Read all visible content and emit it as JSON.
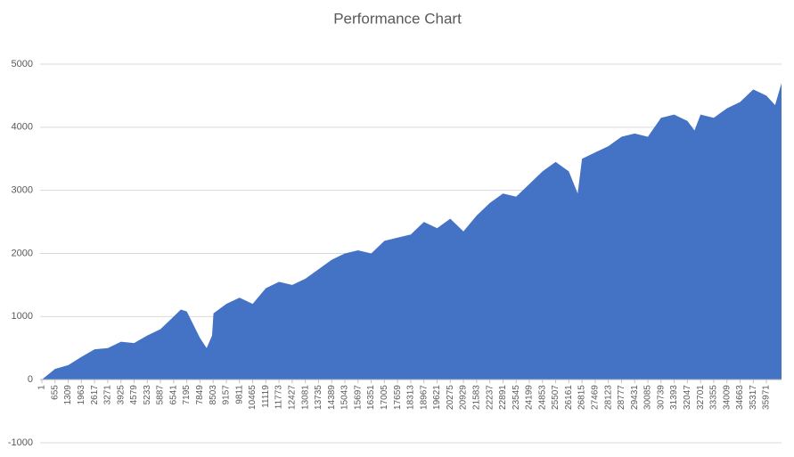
{
  "chart_data": {
    "type": "area",
    "title": "Performance Chart",
    "x": [
      1,
      655,
      1309,
      1963,
      2617,
      3271,
      3925,
      4579,
      5233,
      5887,
      6541,
      6900,
      7195,
      7849,
      8180,
      8450,
      8520,
      9157,
      9811,
      10465,
      11119,
      11773,
      12427,
      13081,
      13735,
      14389,
      15043,
      15697,
      16351,
      17005,
      17659,
      18313,
      18967,
      19621,
      20275,
      20929,
      21583,
      22237,
      22891,
      23545,
      24199,
      24853,
      25507,
      26161,
      26600,
      26815,
      27469,
      28123,
      28777,
      29431,
      30085,
      30739,
      31393,
      32047,
      32400,
      32701,
      33355,
      34009,
      34663,
      35317,
      35971,
      36400,
      36720
    ],
    "values": [
      0,
      170,
      230,
      360,
      480,
      500,
      600,
      580,
      700,
      800,
      1000,
      1110,
      1080,
      660,
      500,
      700,
      1050,
      1200,
      1300,
      1200,
      1450,
      1550,
      1500,
      1600,
      1750,
      1900,
      2000,
      2050,
      2000,
      2200,
      2250,
      2300,
      2500,
      2400,
      2550,
      2350,
      2600,
      2800,
      2950,
      2900,
      3100,
      3300,
      3450,
      3300,
      2950,
      3500,
      3600,
      3700,
      3850,
      3900,
      3850,
      4150,
      4200,
      4100,
      3950,
      4200,
      4150,
      4300,
      4400,
      4600,
      4500,
      4350,
      4700
    ],
    "color": "#4472c4",
    "xlim": [
      1,
      36720
    ],
    "xticks": [
      1,
      655,
      1309,
      1963,
      2617,
      3271,
      3925,
      4579,
      5233,
      5887,
      6541,
      7195,
      7849,
      8503,
      9157,
      9811,
      10465,
      11119,
      11773,
      12427,
      13081,
      13735,
      14389,
      15043,
      15697,
      16351,
      17005,
      17659,
      18313,
      18967,
      19621,
      20275,
      20929,
      21583,
      22237,
      22891,
      23545,
      24199,
      24853,
      25507,
      26161,
      26815,
      27469,
      28123,
      28777,
      29431,
      30085,
      30739,
      31393,
      32047,
      32701,
      33355,
      34009,
      34663,
      35317,
      35971
    ],
    "ylim": [
      -1000,
      5000
    ],
    "yticks": [
      -1000,
      0,
      1000,
      2000,
      3000,
      4000,
      5000
    ],
    "grid": true
  }
}
